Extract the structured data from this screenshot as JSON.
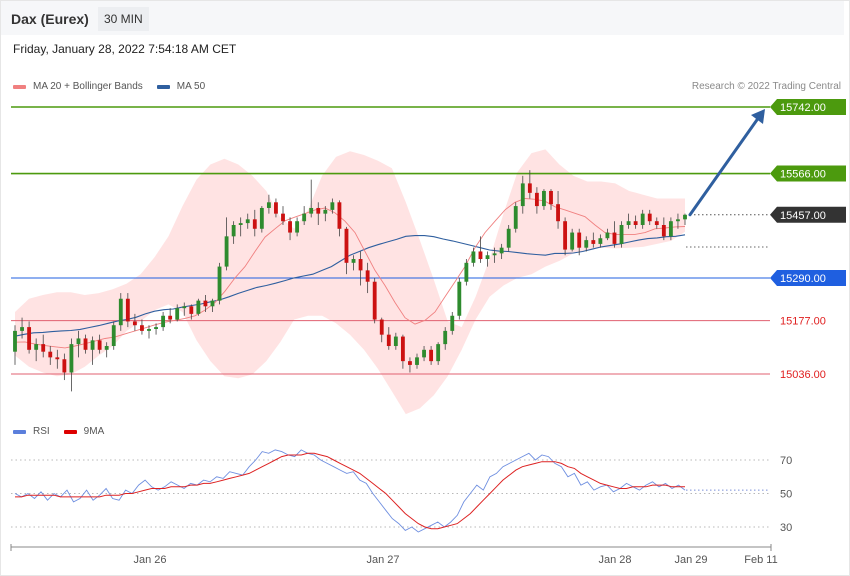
{
  "header": {
    "title": "Dax (Eurex)",
    "interval": "30 MIN",
    "datetime": "Friday, January 28, 2022 7:54:18 AM CET"
  },
  "legend_price": [
    {
      "label": "MA 20 + Bollinger Bands",
      "color": "#f08080"
    },
    {
      "label": "MA 50",
      "color": "#2f5f9f"
    }
  ],
  "legend_rsi": [
    {
      "label": "RSI",
      "color": "#5b7fdc"
    },
    {
      "label": "9MA",
      "color": "#dd0000"
    }
  ],
  "copyright": "Research © 2022 Trading Central",
  "colors": {
    "up": "#2e8b2e",
    "down": "#cc1111",
    "band": "#ffdede",
    "ma20": "#f08080",
    "ma50": "#2f5f9f",
    "resistance": "#4c9a0e",
    "support_blue": "#1f5fe0",
    "support_red": "#e06070",
    "current": "#333333",
    "arrow": "#2f5f9f",
    "rsi": "#6f8fe0",
    "rsi_ma": "#dd2222"
  },
  "chart_data": [
    {
      "type": "candlestick",
      "title": "",
      "xlabel": "",
      "ylabel": "",
      "ylim": [
        14930,
        15780
      ],
      "x_ticks": [
        "Jan 26",
        "Jan 27",
        "Jan 28",
        "Jan 29",
        "Feb 11"
      ],
      "levels": [
        {
          "value": 15742,
          "label": "15742.00",
          "kind": "resistance"
        },
        {
          "value": 15566,
          "label": "15566.00",
          "kind": "resistance"
        },
        {
          "value": 15457,
          "label": "15457.00",
          "kind": "current"
        },
        {
          "value": 15290,
          "label": "15290.00",
          "kind": "pivot"
        },
        {
          "value": 15177,
          "label": "15177.00",
          "kind": "support"
        },
        {
          "value": 15036,
          "label": "15036.00",
          "kind": "support"
        }
      ],
      "forecast_arrow": {
        "from": 15457,
        "to": 15742
      },
      "ohlc": [
        [
          15095,
          15165,
          15060,
          15150
        ],
        [
          15150,
          15185,
          15130,
          15160
        ],
        [
          15160,
          15175,
          15090,
          15100
        ],
        [
          15100,
          15130,
          15070,
          15115
        ],
        [
          15115,
          15140,
          15080,
          15095
        ],
        [
          15095,
          15110,
          15060,
          15080
        ],
        [
          15080,
          15100,
          15050,
          15075
        ],
        [
          15075,
          15090,
          15020,
          15040
        ],
        [
          15040,
          15130,
          14990,
          15115
        ],
        [
          15115,
          15150,
          15080,
          15130
        ],
        [
          15130,
          15140,
          15090,
          15100
        ],
        [
          15100,
          15135,
          15060,
          15125
        ],
        [
          15125,
          15140,
          15090,
          15100
        ],
        [
          15100,
          15120,
          15080,
          15110
        ],
        [
          15110,
          15175,
          15100,
          15165
        ],
        [
          15165,
          15250,
          15150,
          15235
        ],
        [
          15235,
          15250,
          15160,
          15175
        ],
        [
          15175,
          15195,
          15150,
          15165
        ],
        [
          15165,
          15180,
          15140,
          15150
        ],
        [
          15150,
          15165,
          15130,
          15155
        ],
        [
          15155,
          15170,
          15140,
          15160
        ],
        [
          15160,
          15200,
          15150,
          15190
        ],
        [
          15190,
          15210,
          15170,
          15180
        ],
        [
          15180,
          15220,
          15175,
          15210
        ],
        [
          15210,
          15225,
          15190,
          15215
        ],
        [
          15215,
          15220,
          15180,
          15195
        ],
        [
          15195,
          15235,
          15190,
          15230
        ],
        [
          15230,
          15245,
          15200,
          15215
        ],
        [
          15215,
          15235,
          15200,
          15230
        ],
        [
          15230,
          15330,
          15220,
          15320
        ],
        [
          15320,
          15450,
          15310,
          15400
        ],
        [
          15400,
          15440,
          15380,
          15430
        ],
        [
          15430,
          15450,
          15400,
          15435
        ],
        [
          15435,
          15460,
          15420,
          15445
        ],
        [
          15445,
          15470,
          15400,
          15420
        ],
        [
          15420,
          15480,
          15410,
          15475
        ],
        [
          15475,
          15510,
          15460,
          15490
        ],
        [
          15490,
          15500,
          15450,
          15460
        ],
        [
          15460,
          15480,
          15430,
          15440
        ],
        [
          15440,
          15450,
          15390,
          15410
        ],
        [
          15410,
          15450,
          15400,
          15440
        ],
        [
          15440,
          15480,
          15430,
          15460
        ],
        [
          15460,
          15550,
          15450,
          15475
        ],
        [
          15475,
          15490,
          15430,
          15460
        ],
        [
          15460,
          15480,
          15440,
          15470
        ],
        [
          15470,
          15500,
          15460,
          15490
        ],
        [
          15490,
          15495,
          15400,
          15420
        ],
        [
          15420,
          15425,
          15300,
          15330
        ],
        [
          15330,
          15350,
          15310,
          15340
        ],
        [
          15340,
          15360,
          15270,
          15310
        ],
        [
          15310,
          15330,
          15250,
          15280
        ],
        [
          15280,
          15290,
          15170,
          15180
        ],
        [
          15180,
          15185,
          15120,
          15140
        ],
        [
          15140,
          15160,
          15100,
          15110
        ],
        [
          15110,
          15145,
          15100,
          15135
        ],
        [
          15135,
          15140,
          15050,
          15070
        ],
        [
          15070,
          15080,
          15040,
          15060
        ],
        [
          15060,
          15090,
          15050,
          15080
        ],
        [
          15080,
          15110,
          15070,
          15100
        ],
        [
          15100,
          15110,
          15060,
          15070
        ],
        [
          15070,
          15120,
          15060,
          15115
        ],
        [
          15115,
          15160,
          15100,
          15150
        ],
        [
          15150,
          15200,
          15140,
          15190
        ],
        [
          15190,
          15290,
          15180,
          15280
        ],
        [
          15280,
          15340,
          15270,
          15330
        ],
        [
          15330,
          15370,
          15320,
          15360
        ],
        [
          15360,
          15400,
          15330,
          15340
        ],
        [
          15340,
          15360,
          15320,
          15350
        ],
        [
          15350,
          15370,
          15330,
          15355
        ],
        [
          15355,
          15380,
          15340,
          15370
        ],
        [
          15370,
          15430,
          15360,
          15420
        ],
        [
          15420,
          15490,
          15410,
          15480
        ],
        [
          15480,
          15560,
          15460,
          15540
        ],
        [
          15540,
          15575,
          15500,
          15515
        ],
        [
          15515,
          15530,
          15460,
          15480
        ],
        [
          15480,
          15525,
          15470,
          15520
        ],
        [
          15520,
          15525,
          15470,
          15485
        ],
        [
          15485,
          15520,
          15420,
          15440
        ],
        [
          15440,
          15450,
          15350,
          15365
        ],
        [
          15365,
          15420,
          15360,
          15410
        ],
        [
          15410,
          15420,
          15350,
          15370
        ],
        [
          15370,
          15400,
          15360,
          15390
        ],
        [
          15390,
          15410,
          15370,
          15380
        ],
        [
          15380,
          15405,
          15370,
          15395
        ],
        [
          15395,
          15420,
          15390,
          15410
        ],
        [
          15410,
          15440,
          15370,
          15380
        ],
        [
          15380,
          15440,
          15370,
          15430
        ],
        [
          15430,
          15460,
          15420,
          15440
        ],
        [
          15440,
          15455,
          15420,
          15430
        ],
        [
          15430,
          15470,
          15420,
          15460
        ],
        [
          15460,
          15470,
          15430,
          15440
        ],
        [
          15440,
          15450,
          15420,
          15430
        ],
        [
          15430,
          15450,
          15390,
          15400
        ],
        [
          15400,
          15450,
          15390,
          15440
        ],
        [
          15440,
          15460,
          15420,
          15445
        ],
        [
          15445,
          15460,
          15430,
          15457
        ]
      ],
      "series": [
        {
          "name": "MA 50",
          "values": [
            15136,
            15141,
            15145,
            15146,
            15148,
            15150,
            15151,
            15154,
            15159,
            15164,
            15170,
            15176,
            15180,
            15186,
            15195,
            15202,
            15206,
            15208,
            15213,
            15217,
            15221,
            15227,
            15232,
            15240,
            15249,
            15257,
            15265,
            15270,
            15276,
            15283,
            15290,
            15295,
            15300,
            15310,
            15320,
            15335,
            15350,
            15360,
            15370,
            15378,
            15385,
            15392,
            15400,
            15402,
            15402,
            15399,
            15393,
            15388,
            15382,
            15376,
            15370,
            15364,
            15361,
            15360,
            15357,
            15354,
            15352,
            15350,
            15355,
            15355,
            15356,
            15360,
            15366,
            15372,
            15376,
            15380,
            15385,
            15390,
            15394,
            15396,
            15399,
            15400,
            15404
          ]
        },
        {
          "name": "MA 20",
          "values": [
            15120,
            15121,
            15115,
            15111,
            15108,
            15105,
            15110,
            15116,
            15123,
            15130,
            15134,
            15142,
            15150,
            15158,
            15166,
            15173,
            15178,
            15183,
            15190,
            15205,
            15225,
            15255,
            15290,
            15320,
            15360,
            15398,
            15420,
            15441,
            15451,
            15460,
            15470,
            15475,
            15462,
            15440,
            15410,
            15360,
            15310,
            15270,
            15225,
            15185,
            15168,
            15178,
            15200,
            15240,
            15280,
            15320,
            15370,
            15410,
            15440,
            15470,
            15490,
            15500,
            15498,
            15493,
            15478,
            15470,
            15461,
            15452,
            15430,
            15410,
            15405,
            15405,
            15405,
            15410,
            15420,
            15422,
            15425,
            15426
          ]
        }
      ],
      "bollinger_upper": [
        15200,
        15235,
        15245,
        15252,
        15252,
        15245,
        15250,
        15260,
        15275,
        15300,
        15345,
        15400,
        15480,
        15550,
        15590,
        15605,
        15590,
        15560,
        15520,
        15450,
        15420,
        15470,
        15560,
        15610,
        15625,
        15615,
        15600,
        15580,
        15490,
        15390,
        15285,
        15175,
        15160,
        15240,
        15340,
        15460,
        15570,
        15620,
        15630,
        15590,
        15560,
        15545,
        15545,
        15540,
        15520,
        15510,
        15500,
        15500,
        15500
      ],
      "bollinger_lower": [
        15085,
        15055,
        15040,
        15030,
        15035,
        15055,
        15085,
        15110,
        15150,
        15175,
        15205,
        15220,
        15200,
        15125,
        15070,
        15030,
        15025,
        15035,
        15070,
        15120,
        15180,
        15190,
        15190,
        15170,
        15140,
        15100,
        15050,
        14990,
        14930,
        14945,
        14980,
        15030,
        15100,
        15180,
        15240,
        15270,
        15290,
        15300,
        15320,
        15335,
        15355,
        15365,
        15370,
        15368,
        15370,
        15372,
        15380,
        15388,
        15412
      ]
    },
    {
      "type": "line",
      "title": "",
      "ylim": [
        15,
        82
      ],
      "y_ticks": [
        30,
        50,
        70
      ],
      "series": [
        {
          "name": "RSI",
          "values": [
            50,
            48,
            50,
            47,
            51,
            46,
            50,
            48,
            52,
            45,
            47,
            52,
            46,
            49,
            53,
            47,
            46,
            52,
            50,
            55,
            58,
            54,
            52,
            54,
            57,
            55,
            53,
            56,
            55,
            58,
            57,
            60,
            59,
            63,
            62,
            61,
            66,
            70,
            75,
            74,
            76,
            75,
            73,
            72,
            76,
            74,
            73,
            70,
            68,
            66,
            64,
            62,
            63,
            58,
            56,
            50,
            45,
            40,
            35,
            32,
            28,
            30,
            27,
            29,
            31,
            33,
            30,
            33,
            37,
            45,
            50,
            55,
            52,
            60,
            62,
            66,
            68,
            70,
            72,
            74,
            70,
            73,
            72,
            68,
            66,
            60,
            62,
            55,
            57,
            52,
            54,
            55,
            51,
            53,
            56,
            54,
            52,
            55,
            57,
            54,
            56,
            53,
            55,
            52
          ]
        },
        {
          "name": "9MA",
          "values": [
            48,
            48,
            49,
            49,
            49,
            49,
            49,
            48,
            48,
            48,
            48,
            48,
            48,
            48,
            49,
            49,
            49,
            50,
            50,
            51,
            52,
            53,
            53,
            53,
            54,
            54,
            54,
            55,
            55,
            56,
            56,
            57,
            58,
            59,
            60,
            61,
            62,
            64,
            66,
            68,
            70,
            72,
            73,
            73,
            73,
            74,
            74,
            73,
            72,
            70,
            68,
            66,
            64,
            62,
            59,
            56,
            53,
            50,
            46,
            42,
            38,
            35,
            32,
            30,
            29,
            29,
            30,
            31,
            32,
            35,
            38,
            42,
            46,
            50,
            54,
            58,
            61,
            64,
            66,
            67,
            68,
            69,
            69,
            69,
            68,
            66,
            65,
            62,
            60,
            58,
            56,
            55,
            54,
            53,
            53,
            54,
            54,
            54,
            55,
            55,
            55,
            54,
            54,
            54
          ]
        }
      ]
    }
  ]
}
